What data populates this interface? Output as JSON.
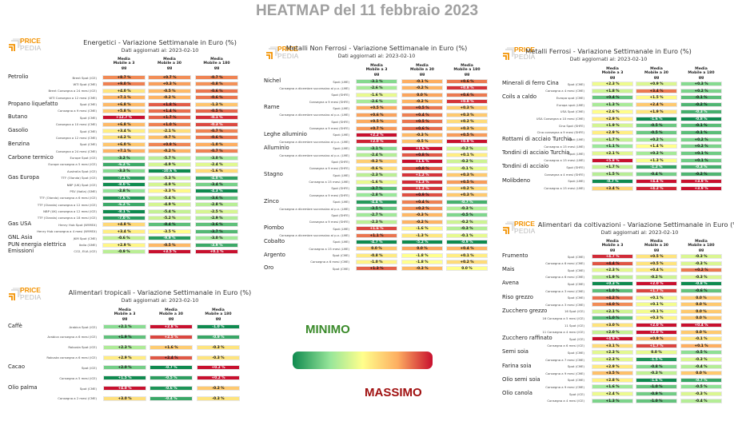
{
  "title": "HEATMAP del 11 febbraio 2023",
  "legend": {
    "min_label": "MINIMO",
    "max_label": "MASSIMO",
    "scale_colors": [
      "#0f8a4f",
      "#98e69a",
      "#ffff8c",
      "#fdae61",
      "#c8102e"
    ]
  },
  "logo": {
    "price": "PRICE",
    "pedia": "PEDIA"
  },
  "chart_data": [
    {
      "type": "heatmap",
      "title": "Energetici - Variazione Settimanale in Euro (%)",
      "subtitle": "Dati aggiornati al: 2023-02-10",
      "columns": [
        "Media\nMobile a 3\ngg",
        "Media\nMobile a 30\ngg",
        "Media\nMobile a 180\ngg"
      ],
      "groups": [
        {
          "name": "Petrolio",
          "rows": [
            [
              "Brent Spot (ICE)",
              8.7,
              0.7,
              -0.7
            ],
            [
              "WTI Spot (CME)",
              9.0,
              0.3,
              -0.8
            ],
            [
              "Brent Consegna a 24 mesi (ICE)",
              4.0,
              -0.5,
              -0.6
            ],
            [
              "WTI Consegna a 12 mesi (CME)",
              7.1,
              -0.2,
              -0.6
            ]
          ]
        },
        {
          "name": "Propano liquefatto",
          "rows": [
            [
              "Spot (CME)",
              6.8,
              1.8,
              -1.3
            ],
            [
              "Consegna a 9 mesi (CME)",
              5.8,
              1.4,
              -0.5
            ]
          ]
        },
        {
          "name": "Butano",
          "rows": [
            [
              "Spot (CME)",
              12.7,
              1.7,
              -0.1
            ],
            [
              "Consegna a 10 mesi (CME)",
              6.8,
              1.0,
              -0.3
            ]
          ]
        },
        {
          "name": "Gasolio",
          "rows": [
            [
              "Spot (CME)",
              3.4,
              -2.1,
              -0.7
            ],
            [
              "Consegna a 12 mesi (CME)",
              4.2,
              -0.7,
              -0.6
            ]
          ]
        },
        {
          "name": "Benzina",
          "rows": [
            [
              "Spot (CME)",
              6.0,
              0.9,
              -1.0
            ],
            [
              "Consegna a 24 mesi (CME)",
              7.1,
              -0.2,
              -0.7
            ]
          ]
        },
        {
          "name": "Carbone termico",
          "rows": [
            [
              "Europe Spot (ICE)",
              -3.2,
              -5.7,
              -3.0
            ],
            [
              "Europe consegna a 5 mesi (ICE)",
              -6.2,
              -4.9,
              -2.4
            ],
            [
              "Australia Spot (ICE)",
              -3.3,
              -10.6,
              -1.6
            ]
          ]
        },
        {
          "name": "Gas Europa",
          "rows": [
            [
              "TTF (Olanda) Spot (ICE)",
              -7.1,
              -5.3,
              -4.0
            ],
            [
              "NBP (UK) Spot (ICE)",
              -8.0,
              -4.9,
              -3.4
            ],
            [
              "PSV (Italia) (GME)",
              -2.8,
              -3.3,
              -4.3
            ],
            [
              "TTF (Olanda) consegna a 6 mesi (ICE)",
              -7.6,
              -5.4,
              -3.6
            ],
            [
              "TTF (Olanda) consegna a 12 mesi (ICE)",
              -6.2,
              -4.9,
              -2.8
            ],
            [
              "NBP (UK) consegna a 12 mesi (ICE)",
              -8.1,
              -5.4,
              -2.5
            ],
            [
              "TTF (Olanda) consegna a 18 mesi (ICE)",
              -7.0,
              -5.2,
              -2.9
            ]
          ]
        },
        {
          "name": "Gas USA",
          "rows": [
            [
              "Henry Hub Spot (NYMEX)",
              4.8,
              -8.4,
              -3.6
            ],
            [
              "Henry Hub consegna a 4 mesi (NYMEX)",
              3.4,
              -3.5,
              -3.7
            ]
          ]
        },
        {
          "name": "GNL Asia",
          "rows": [
            [
              "JKM Spot (CME)",
              -0.6,
              -9.9,
              -3.0
            ]
          ]
        },
        {
          "name": "PUN energia elettrica",
          "rows": [
            [
              "Italia (GME)",
              2.9,
              -0.5,
              -3.9
            ]
          ]
        },
        {
          "name": "Emissioni",
          "rows": [
            [
              "CO2, EUA (ICE)",
              -0.9,
              3.5,
              0.1
            ]
          ]
        }
      ]
    },
    {
      "type": "heatmap",
      "title": "Alimentari tropicali - Variazione Settimanale in Euro (%)",
      "subtitle": "Dati aggiornati al: 2023-02-10",
      "columns": [
        "Media\nMobile a 3\ngg",
        "Media\nMobile a 30\ngg",
        "Media\nMobile a 180\ngg"
      ],
      "groups": [
        {
          "name": "Caffè",
          "rows": [
            [
              "Arabica Spot (ICE)",
              2.1,
              2.8,
              -1.0
            ],
            [
              "Arabica consegna a 6 mesi (ICE)",
              1.9,
              2.5,
              -0.9
            ],
            [
              "Robusta Spot (ICE)",
              2.3,
              1.6,
              -0.3
            ],
            [
              "Robusta consegna a 6 mesi (ICE)",
              2.9,
              2.4,
              -0.3
            ]
          ]
        },
        {
          "name": "Cacao",
          "rows": [
            [
              "Spot (ICE)",
              2.0,
              -0.7,
              0.2
            ],
            [
              "Consegna a 5 mesi (ICE)",
              1.5,
              -0.5,
              0.2
            ]
          ]
        },
        {
          "name": "Olio palma",
          "rows": [
            [
              "Spot (CME)",
              4.0,
              -0.6,
              -0.2
            ],
            [
              "Consegna a 2 mesi (CME)",
              3.0,
              -0.4,
              -0.3
            ]
          ]
        }
      ]
    },
    {
      "type": "heatmap",
      "title": "Metalli Non Ferrosi - Variazione Settimanale in Euro (%)",
      "subtitle": "Dati aggiornati al: 2023-02-10",
      "columns": [
        "Media\nMobile a 3\ngg",
        "Media\nMobile a 30\ngg",
        "Media\nMobile a 180\ngg"
      ],
      "groups": [
        {
          "name": "Nichel",
          "rows": [
            [
              "Spot (LME)",
              -3.1,
              -0.1,
              0.6
            ],
            [
              "Consegna a dicembre successivo al p.v. (LME)",
              -2.6,
              -0.2,
              0.8
            ],
            [
              "Spot (SHFE)",
              -1.6,
              0.0,
              0.6
            ],
            [
              "Consegna a 9 mesi (SHFE)",
              -2.6,
              -0.2,
              0.8
            ]
          ]
        },
        {
          "name": "Rame",
          "rows": [
            [
              "Spot (LME)",
              0.5,
              0.5,
              0.3
            ],
            [
              "Consegna a dicembre successivo al p.v. (LME)",
              0.6,
              0.4,
              0.3
            ],
            [
              "Spot (SHFE)",
              0.5,
              0.5,
              0.2
            ],
            [
              "Consegna a 9 mesi (SHFE)",
              0.7,
              0.6,
              0.3
            ]
          ]
        },
        {
          "name": "Leghe alluminio",
          "rows": [
            [
              "Spot (LME)",
              2.2,
              -0.3,
              0.5
            ],
            [
              "Consegna a dicembre successivo al p.v. (LME)",
              2.0,
              -0.5,
              0.9
            ]
          ]
        },
        {
          "name": "Alluminio",
          "rows": [
            [
              "Spot (LME)",
              -3.1,
              1.6,
              -0.2
            ],
            [
              "Consegna a dicembre successivo al p.v. (LME)",
              -2.4,
              0.8,
              0.1
            ],
            [
              "Spot (SHFE)",
              -0.2,
              1.6,
              -0.2
            ],
            [
              "Consegna a 9 mesi (SHFE)",
              -0.6,
              0.8,
              -0.1
            ]
          ]
        },
        {
          "name": "Stagno",
          "rows": [
            [
              "Spot (LME)",
              -2.3,
              1.2,
              0.3
            ],
            [
              "Consegna a 15 mesi (LME)",
              -1.6,
              1.3,
              0.5
            ],
            [
              "Spot (SHFE)",
              -3.7,
              1.2,
              0.2
            ],
            [
              "Consegna a 9 mesi (SHFE)",
              -2.8,
              0.9,
              0.3
            ]
          ]
        },
        {
          "name": "Zinco",
          "rows": [
            [
              "Spot (LME)",
              -4.4,
              0.4,
              -0.7
            ],
            [
              "Consegna a dicembre successivo al p.v. (LME)",
              -3.5,
              0.2,
              -0.3
            ],
            [
              "Spot (SHFE)",
              -2.7,
              -0.3,
              -0.5
            ],
            [
              "Consegna a 9 mesi (SHFE)",
              -2.3,
              -0.2,
              -0.2
            ]
          ]
        },
        {
          "name": "Piombo",
          "rows": [
            [
              "Spot (LME)",
              1.6,
              -1.6,
              -0.3
            ],
            [
              "Consegna a dicembre successivo al p.v. (LME)",
              1.1,
              -1.3,
              -0.1
            ]
          ]
        },
        {
          "name": "Cobalto",
          "rows": [
            [
              "Spot (LME)",
              -4.7,
              -5.2,
              -0.9
            ],
            [
              "Consegna a 15 mesi (LME)",
              0.0,
              0.0,
              0.4
            ]
          ]
        },
        {
          "name": "Argento",
          "rows": [
            [
              "Spot (CME)",
              -0.8,
              -1.8,
              0.1
            ],
            [
              "Consegna a 6 mesi (CME)",
              -1.0,
              -1.8,
              0.2
            ]
          ]
        },
        {
          "name": "Oro",
          "rows": [
            [
              "Spot (CME)",
              1.3,
              -0.3,
              0.0
            ]
          ]
        }
      ]
    },
    {
      "type": "heatmap",
      "title": "Metalli Ferrosi - Variazione Settimanale in Euro (%)",
      "subtitle": "Dati aggiornati al: 2023-02-10",
      "columns": [
        "Media\nMobile a 3\ngg",
        "Media\nMobile a 30\ngg",
        "Media\nMobile a 180\ngg"
      ],
      "groups": [
        {
          "name": "Minerali di ferro Cina",
          "rows": [
            [
              "Spot (CME)",
              2.3,
              0.9,
              0.3
            ],
            [
              "Consegna a 4 mesi (CME)",
              1.8,
              3.4,
              0.2
            ]
          ]
        },
        {
          "name": "Coils a caldo",
          "rows": [
            [
              "Europa spot (CME)",
              0.4,
              1.5,
              -0.1
            ],
            [
              "Europa spot (LME)",
              1.3,
              2.4,
              -0.2
            ],
            [
              "USA Spot (CME)",
              2.6,
              1.9,
              -0.3
            ],
            [
              "USA Consegna a 10 mesi (CME)",
              2.9,
              -1.6,
              -0.8
            ],
            [
              "Cina Spot (SHFE)",
              1.9,
              -0.5,
              -0.1
            ],
            [
              "Cina consegna a 9 mesi (SHFE)",
              2.9,
              -0.5,
              -0.1
            ]
          ]
        },
        {
          "name": "Rottami di acciaio Turchia",
          "rows": [
            [
              "Spot (LME)",
              1.7,
              0.2,
              0.2
            ],
            [
              "Consegna a 15 mesi (LME)",
              1.1,
              1.4,
              0.2
            ]
          ]
        },
        {
          "name": "Tondini di acciaio Turchia",
          "rows": [
            [
              "Spot (LME)",
              2.1,
              0.2,
              0.1
            ],
            [
              "Consegna a 15 mesi (LME)",
              5.8,
              1.3,
              0.1
            ]
          ]
        },
        {
          "name": "Tondini di acciaio",
          "rows": [
            [
              "Spot (SHFE)",
              1.7,
              -1.2,
              -0.3
            ],
            [
              "Consegna a 4 mesi (SHFE)",
              1.5,
              -0.4,
              -0.2
            ]
          ]
        },
        {
          "name": "Molibdeno",
          "rows": [
            [
              "Spot (LME)",
              -0.7,
              4.4,
              3.9
            ],
            [
              "Consegna a 15 mesi (LME)",
              3.4,
              4.2,
              3.9
            ]
          ]
        }
      ]
    },
    {
      "type": "heatmap",
      "title": "Alimentari da coltivazioni - Variazione Settimanale in Euro (%)",
      "subtitle": "Dati aggiornati al: 2023-02-10",
      "columns": [
        "Media\nMobile a 3\ngg",
        "Media\nMobile a 30\ngg",
        "Media\nMobile a 180\ngg"
      ],
      "groups": [
        {
          "name": "Frumento",
          "rows": [
            [
              "Spot (CME)",
              4.7,
              0.5,
              -0.3
            ],
            [
              "Consegna a 6 mesi (CME)",
              4.4,
              0.5,
              -0.3
            ]
          ]
        },
        {
          "name": "Mais",
          "rows": [
            [
              "Spot (CME)",
              2.3,
              0.4,
              0.2
            ],
            [
              "Consegna a 6 mesi (CME)",
              1.9,
              -0.2,
              -0.3
            ]
          ]
        },
        {
          "name": "Avena",
          "rows": [
            [
              "Spot (CME)",
              0.3,
              2.0,
              -0.8
            ],
            [
              "Consegna a 3 mesi (CME)",
              1.0,
              1.7,
              -0.6
            ]
          ]
        },
        {
          "name": "Riso grezzo",
          "rows": [
            [
              "Spot (CME)",
              4.2,
              0.1,
              0.0
            ],
            [
              "Consegna a 3 mesi (CME)",
              4.0,
              0.1,
              0.0
            ]
          ]
        },
        {
          "name": "Zucchero grezzo",
          "rows": [
            [
              "16 Spot (ICE)",
              2.1,
              0.1,
              0.0
            ],
            [
              "16 Consegna a 5 mesi (ICE)",
              1.0,
              0.3,
              0.0
            ],
            [
              "11 Spot (ICE)",
              3.0,
              2.0,
              0.4
            ],
            [
              "11 Consegna a 4 mesi (ICE)",
              2.0,
              2.0,
              0.0
            ]
          ]
        },
        {
          "name": "Zucchero raffinato",
          "rows": [
            [
              "Spot (ICE)",
              4.9,
              0.9,
              -0.1
            ],
            [
              "Consegna a 6 mesi (ICE)",
              3.1,
              1.7,
              0.1
            ]
          ]
        },
        {
          "name": "Semi soia",
          "rows": [
            [
              "Spot (CME)",
              2.3,
              0.0,
              -0.5
            ],
            [
              "Consegna a 7 mesi (CME)",
              2.3,
              -1.5,
              -0.3
            ]
          ]
        },
        {
          "name": "Farina soia",
          "rows": [
            [
              "Spot (CME)",
              2.9,
              -0.8,
              -0.4
            ],
            [
              "Consegna a 9 mesi (CME)",
              3.5,
              -0.3,
              0.0
            ]
          ]
        },
        {
          "name": "Olio semi soia",
          "rows": [
            [
              "Spot (CME)",
              2.8,
              -1.6,
              -0.7
            ],
            [
              "Consegna a 9 mesi (CME)",
              1.6,
              -1.0,
              -0.5
            ]
          ]
        },
        {
          "name": "Olio canola",
          "rows": [
            [
              "Spot (ICE)",
              2.4,
              -0.9,
              -0.3
            ],
            [
              "Consegna a 4 mesi (ICE)",
              1.3,
              -1.0,
              -0.4
            ]
          ]
        }
      ]
    }
  ]
}
